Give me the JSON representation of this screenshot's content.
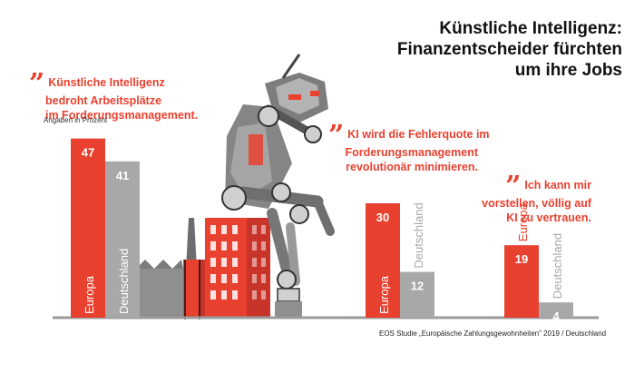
{
  "title_lines": [
    "Künstliche Intelligenz:",
    "Finanzentscheider fürchten",
    "um ihre Jobs"
  ],
  "quotes": [
    {
      "lines": [
        "Künstliche Intelligenz",
        "bedroht Arbeitsplätze",
        "im Forderungsmanagement."
      ]
    },
    {
      "lines": [
        "KI wird die Fehlerquote im",
        "Forderungsmanagement",
        "revolutionär minimieren."
      ]
    },
    {
      "lines": [
        "Ich kann mir",
        "vorstellen, völlig auf",
        "KI zu vertrauen."
      ]
    }
  ],
  "unit_note": "Angaben in Prozent",
  "source": "EOS Studie „Europäische Zahlungsgewohnheiten\" 2019 / Deutschland",
  "colors": {
    "europa": "#e9412f",
    "deutschland": "#a8a8a8",
    "baseline": "#9a9a9a",
    "quote": "#e9412f"
  },
  "chart_data": {
    "type": "bar",
    "categories": [
      "Künstliche Intelligenz bedroht Arbeitsplätze im Forderungsmanagement.",
      "KI wird die Fehlerquote im Forderungsmanagement revolutionär minimieren.",
      "Ich kann mir vorstellen, völlig auf KI zu vertrauen."
    ],
    "series": [
      {
        "name": "Europa",
        "values": [
          47,
          30,
          19
        ]
      },
      {
        "name": "Deutschland",
        "values": [
          41,
          12,
          4
        ]
      }
    ],
    "ylim": [
      0,
      50
    ],
    "grid": false
  }
}
